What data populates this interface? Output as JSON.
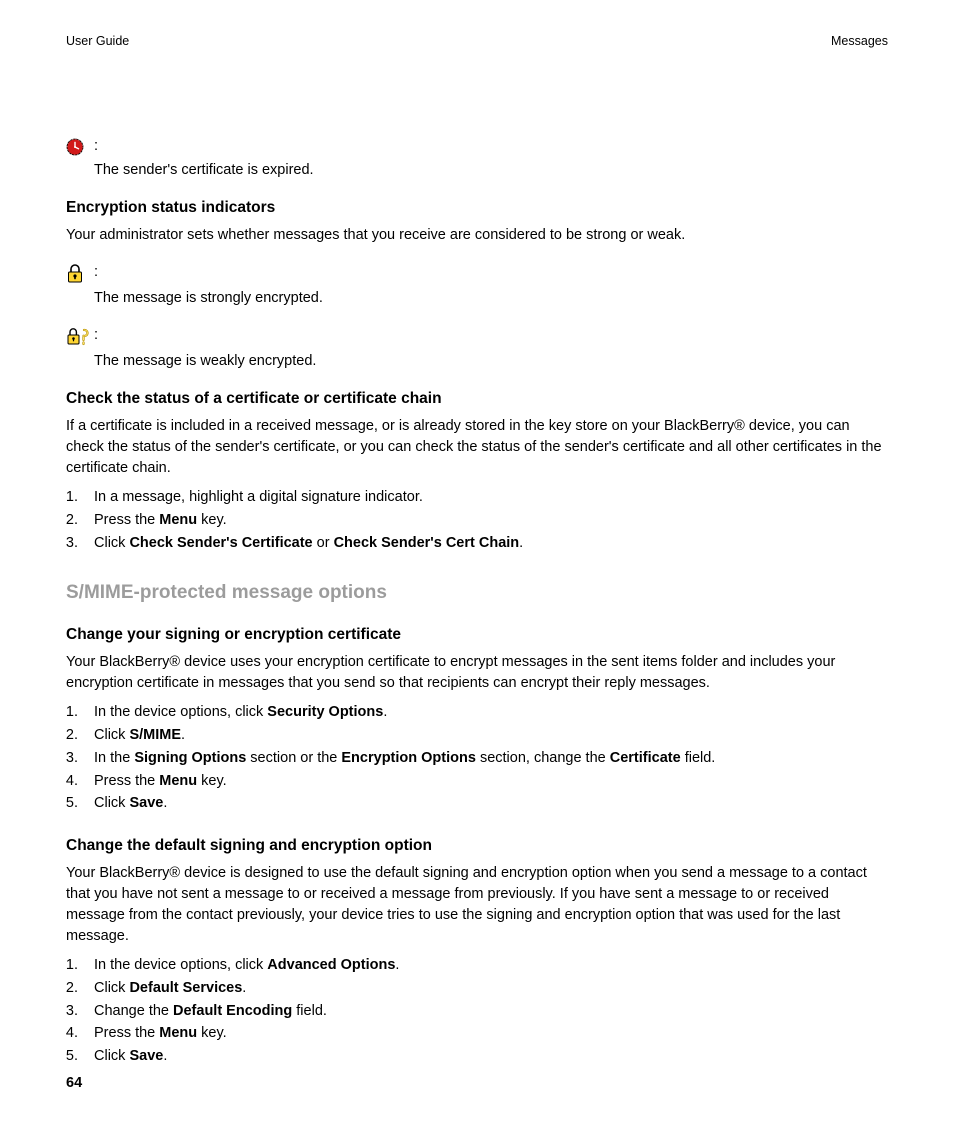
{
  "header": {
    "left": "User Guide",
    "right": "Messages"
  },
  "page_number": "64",
  "colors": {
    "text": "#000000",
    "section_heading": "#9c9c9c",
    "clock_fill": "#d11a1a",
    "clock_stroke": "#000000",
    "lock_body": "#ffd633",
    "lock_stroke": "#000000",
    "question_stroke": "#b38f00",
    "question_fill": "#ffe266"
  },
  "cert_expired": {
    "icon_name": "clock-red-icon",
    "desc": "The sender's certificate is expired."
  },
  "enc_indicators": {
    "heading": "Encryption status indicators",
    "intro": "Your administrator sets whether messages that you receive are considered to be strong or weak.",
    "strong": {
      "icon_name": "lock-strong-icon",
      "desc": "The message is strongly encrypted."
    },
    "weak": {
      "icon_name": "lock-weak-icon",
      "desc": "The message is weakly encrypted."
    }
  },
  "check_cert": {
    "heading": "Check the status of a certificate or certificate chain",
    "intro": "If a certificate is included in a received message, or is already stored in the key store on your BlackBerry® device, you can check the status of the sender's certificate, or you can check the status of the sender's certificate and all other certificates in the certificate chain.",
    "steps": [
      [
        {
          "t": "In a message, highlight a digital signature indicator."
        }
      ],
      [
        {
          "t": "Press the "
        },
        {
          "t": "Menu",
          "b": true
        },
        {
          "t": " key."
        }
      ],
      [
        {
          "t": "Click "
        },
        {
          "t": "Check Sender's Certificate",
          "b": true
        },
        {
          "t": " or "
        },
        {
          "t": "Check Sender's Cert Chain",
          "b": true
        },
        {
          "t": "."
        }
      ]
    ]
  },
  "smime_section": {
    "heading": "S/MIME-protected message options"
  },
  "change_cert": {
    "heading": "Change your signing or encryption certificate",
    "intro": "Your BlackBerry® device uses your encryption certificate to encrypt messages in the sent items folder and includes your encryption certificate in messages that you send so that recipients can encrypt their reply messages.",
    "steps": [
      [
        {
          "t": "In the device options, click "
        },
        {
          "t": "Security Options",
          "b": true
        },
        {
          "t": "."
        }
      ],
      [
        {
          "t": "Click "
        },
        {
          "t": "S/MIME",
          "b": true
        },
        {
          "t": "."
        }
      ],
      [
        {
          "t": "In the "
        },
        {
          "t": "Signing Options",
          "b": true
        },
        {
          "t": " section or the "
        },
        {
          "t": "Encryption Options",
          "b": true
        },
        {
          "t": " section, change the "
        },
        {
          "t": "Certificate",
          "b": true
        },
        {
          "t": " field."
        }
      ],
      [
        {
          "t": "Press the "
        },
        {
          "t": "Menu",
          "b": true
        },
        {
          "t": " key."
        }
      ],
      [
        {
          "t": "Click "
        },
        {
          "t": "Save",
          "b": true
        },
        {
          "t": "."
        }
      ]
    ]
  },
  "change_default": {
    "heading": "Change the default signing and encryption option",
    "intro": "Your BlackBerry® device is designed to use the default signing and encryption option when you send a message to a contact that you have not sent a message to or received a message from previously. If you have sent a message to or received message from the contact previously, your device tries to use the signing and encryption option that was used for the last message.",
    "steps": [
      [
        {
          "t": "In the device options, click "
        },
        {
          "t": "Advanced Options",
          "b": true
        },
        {
          "t": "."
        }
      ],
      [
        {
          "t": "Click "
        },
        {
          "t": "Default Services",
          "b": true
        },
        {
          "t": "."
        }
      ],
      [
        {
          "t": "Change the "
        },
        {
          "t": "Default Encoding",
          "b": true
        },
        {
          "t": " field."
        }
      ],
      [
        {
          "t": "Press the "
        },
        {
          "t": "Menu",
          "b": true
        },
        {
          "t": " key."
        }
      ],
      [
        {
          "t": "Click "
        },
        {
          "t": "Save",
          "b": true
        },
        {
          "t": "."
        }
      ]
    ]
  }
}
